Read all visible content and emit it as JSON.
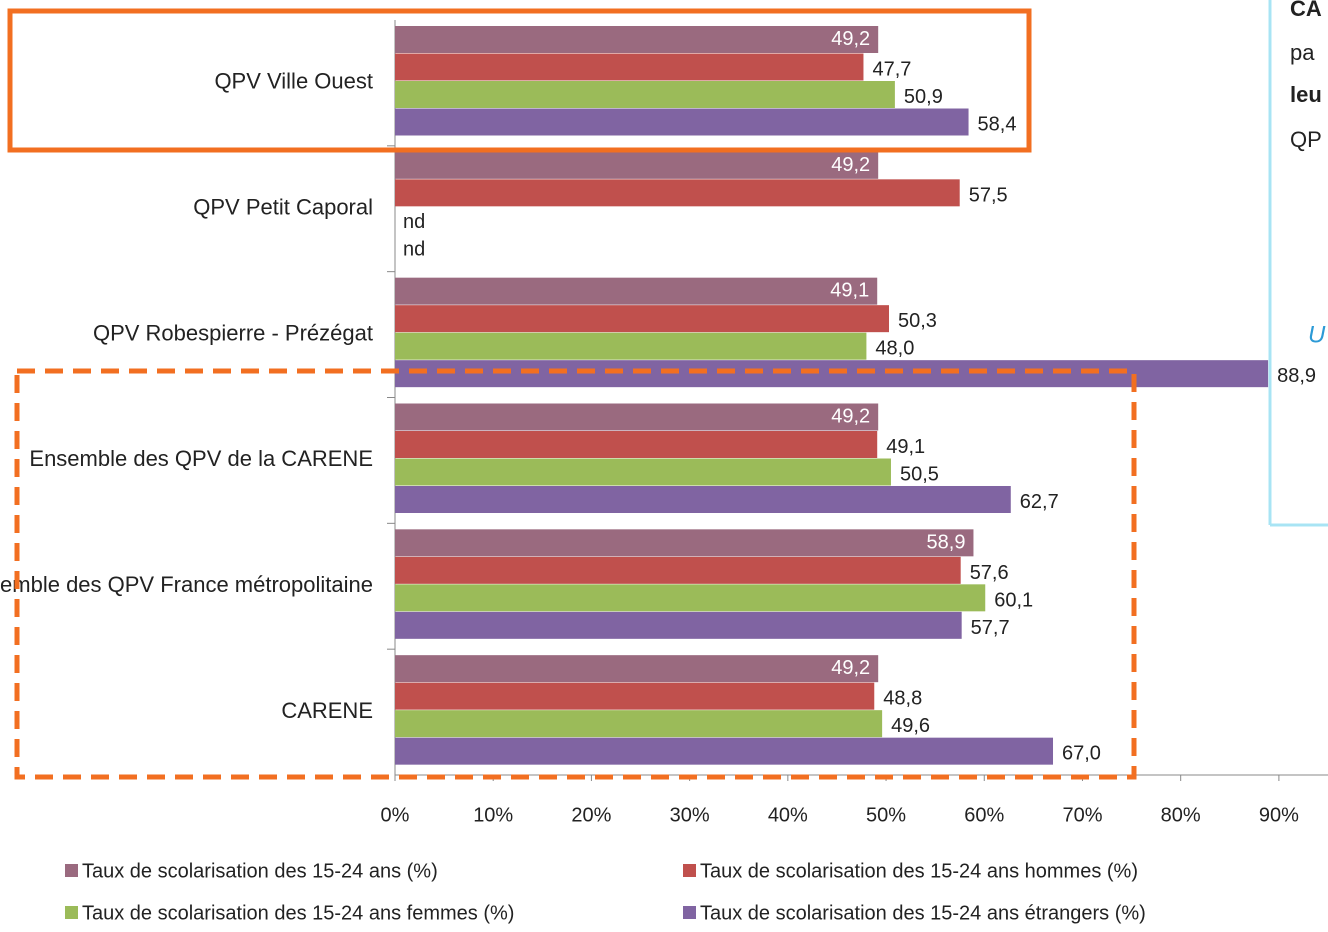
{
  "chart_data": {
    "type": "hbar",
    "categories": [
      "QPV Ville Ouest",
      "QPV Petit Caporal",
      "QPV Robespierre - Prézégat",
      "Ensemble des QPV de la CARENE",
      "Ensemble des QPV France métropolitaine",
      "CARENE"
    ],
    "series": [
      {
        "name": "Taux de scolarisation des 15-24 ans (%)",
        "color": "#9a6a7f",
        "values": [
          49.2,
          49.2,
          49.1,
          49.2,
          58.9,
          49.2
        ],
        "value_labels": [
          "49,2",
          "49,2",
          "49,1",
          "49,2",
          "58,9",
          "49,2"
        ]
      },
      {
        "name": "Taux de scolarisation des 15-24 ans hommes (%)",
        "color": "#c0504d",
        "values": [
          47.7,
          57.5,
          50.3,
          49.1,
          57.6,
          48.8
        ],
        "value_labels": [
          "47,7",
          "57,5",
          "50,3",
          "49,1",
          "57,6",
          "48,8"
        ]
      },
      {
        "name": "Taux de scolarisation des 15-24 ans femmes (%)",
        "color": "#9bbb59",
        "values": [
          50.9,
          null,
          48.0,
          50.5,
          60.1,
          49.6
        ],
        "value_labels": [
          "50,9",
          "nd",
          "48,0",
          "50,5",
          "60,1",
          "49,6"
        ]
      },
      {
        "name": "Taux de scolarisation des 15-24 ans étrangers (%)",
        "color": "#8064a2",
        "values": [
          58.4,
          null,
          88.9,
          62.7,
          57.7,
          67.0
        ],
        "value_labels": [
          "58,4",
          "nd",
          "88,9",
          "62,7",
          "57,7",
          "67,0"
        ]
      }
    ],
    "xlim": [
      0,
      95
    ],
    "xticks": [
      {
        "value": 0,
        "label": "0%"
      },
      {
        "value": 10,
        "label": "10%"
      },
      {
        "value": 20,
        "label": "20%"
      },
      {
        "value": 30,
        "label": "30%"
      },
      {
        "value": 40,
        "label": "40%"
      },
      {
        "value": 50,
        "label": "50%"
      },
      {
        "value": 60,
        "label": "60%"
      },
      {
        "value": 70,
        "label": "70%"
      },
      {
        "value": 80,
        "label": "80%"
      },
      {
        "value": 90,
        "label": "90%"
      }
    ],
    "legend": "bottom"
  },
  "side_text": [
    "CA",
    "pa",
    "leu",
    "QP",
    "U"
  ]
}
